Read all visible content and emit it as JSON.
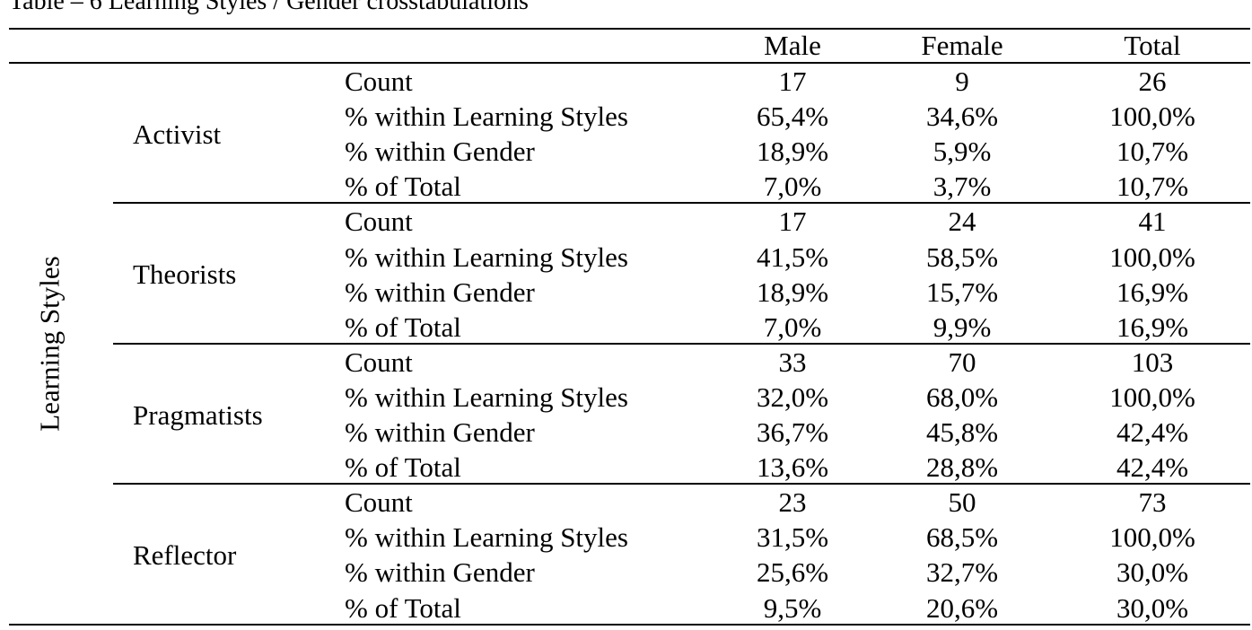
{
  "caption": "Table – 6 Learning Styles / Gender crosstabulations",
  "row_dimension_label": "Learning Styles",
  "columns": [
    "Male",
    "Female",
    "Total"
  ],
  "groups": [
    {
      "name": "Activist",
      "rows": [
        {
          "label": "Count",
          "values": [
            "17",
            "9",
            "26"
          ]
        },
        {
          "label": "% within Learning Styles",
          "values": [
            "65,4%",
            "34,6%",
            "100,0%"
          ]
        },
        {
          "label": "% within Gender",
          "values": [
            "18,9%",
            "5,9%",
            "10,7%"
          ]
        },
        {
          "label": "% of Total",
          "values": [
            "7,0%",
            "3,7%",
            "10,7%"
          ]
        }
      ]
    },
    {
      "name": "Theorists",
      "rows": [
        {
          "label": "Count",
          "values": [
            "17",
            "24",
            "41"
          ]
        },
        {
          "label": "% within Learning Styles",
          "values": [
            "41,5%",
            "58,5%",
            "100,0%"
          ]
        },
        {
          "label": "% within Gender",
          "values": [
            "18,9%",
            "15,7%",
            "16,9%"
          ]
        },
        {
          "label": "% of Total",
          "values": [
            "7,0%",
            "9,9%",
            "16,9%"
          ]
        }
      ]
    },
    {
      "name": "Pragmatists",
      "rows": [
        {
          "label": "Count",
          "values": [
            "33",
            "70",
            "103"
          ]
        },
        {
          "label": "% within Learning Styles",
          "values": [
            "32,0%",
            "68,0%",
            "100,0%"
          ]
        },
        {
          "label": "% within Gender",
          "values": [
            "36,7%",
            "45,8%",
            "42,4%"
          ]
        },
        {
          "label": "% of Total",
          "values": [
            "13,6%",
            "28,8%",
            "42,4%"
          ]
        }
      ]
    },
    {
      "name": "Reflector",
      "rows": [
        {
          "label": "Count",
          "values": [
            "23",
            "50",
            "73"
          ]
        },
        {
          "label": "% within Learning Styles",
          "values": [
            "31,5%",
            "68,5%",
            "100,0%"
          ]
        },
        {
          "label": "% within Gender",
          "values": [
            "25,6%",
            "32,7%",
            "30,0%"
          ]
        },
        {
          "label": "% of Total",
          "values": [
            "9,5%",
            "20,6%",
            "30,0%"
          ]
        }
      ]
    }
  ]
}
